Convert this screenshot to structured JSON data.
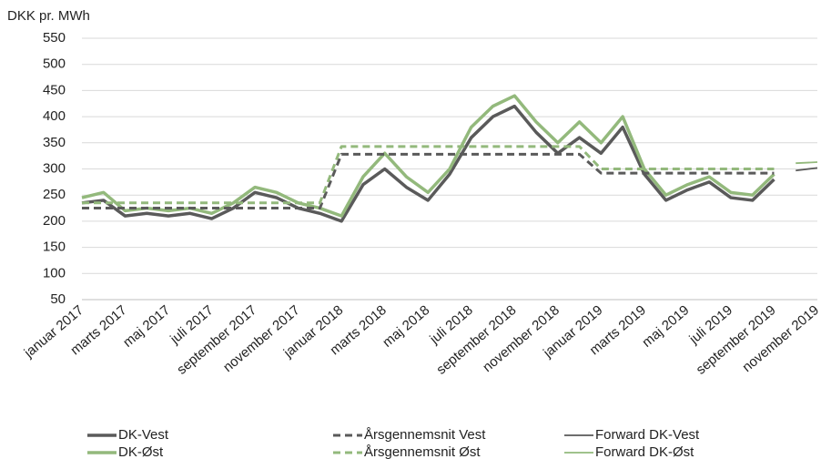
{
  "chart_data": {
    "type": "line",
    "y_label": "DKK pr. MWh",
    "categories": [
      "januar 2017",
      null,
      "marts 2017",
      null,
      "maj 2017",
      null,
      "juli 2017",
      null,
      "september 2017",
      null,
      "november 2017",
      null,
      "januar 2018",
      null,
      "marts 2018",
      null,
      "maj 2018",
      null,
      "juli 2018",
      null,
      "september 2018",
      null,
      "november 2018",
      null,
      "januar 2019",
      null,
      "marts 2019",
      null,
      "maj 2019",
      null,
      "juli 2019",
      null,
      "september 2019",
      null,
      "november 2019"
    ],
    "ylim": [
      50,
      550
    ],
    "yticks": [
      50,
      100,
      150,
      200,
      250,
      300,
      350,
      400,
      450,
      500,
      550
    ],
    "grid": true,
    "series": [
      {
        "name": "DK-Vest",
        "color": "#5a5a5a",
        "style": "solid",
        "width": 3.5,
        "values": [
          235,
          240,
          210,
          215,
          210,
          215,
          205,
          225,
          255,
          245,
          225,
          215,
          200,
          270,
          300,
          265,
          240,
          290,
          360,
          400,
          420,
          370,
          330,
          360,
          330,
          380,
          290,
          240,
          260,
          275,
          245,
          240,
          280,
          null,
          null
        ]
      },
      {
        "name": "DK-Øst",
        "color": "#93b97c",
        "style": "solid",
        "width": 3.5,
        "values": [
          245,
          255,
          220,
          225,
          220,
          225,
          215,
          235,
          265,
          255,
          235,
          225,
          210,
          285,
          330,
          285,
          255,
          300,
          380,
          420,
          440,
          390,
          350,
          390,
          350,
          400,
          300,
          250,
          270,
          285,
          255,
          250,
          290,
          null,
          null
        ]
      },
      {
        "name": "Årsgennemsnit Vest",
        "color": "#5a5a5a",
        "style": "dashed",
        "width": 3,
        "values": [
          225,
          225,
          225,
          225,
          225,
          225,
          225,
          225,
          225,
          225,
          225,
          225,
          328,
          328,
          328,
          328,
          328,
          328,
          328,
          328,
          328,
          328,
          328,
          328,
          292,
          292,
          292,
          292,
          292,
          292,
          292,
          292,
          292,
          null,
          null
        ]
      },
      {
        "name": "Årsgennemsnit Øst",
        "color": "#93b97c",
        "style": "dashed",
        "width": 3,
        "values": [
          235,
          235,
          235,
          235,
          235,
          235,
          235,
          235,
          235,
          235,
          235,
          235,
          343,
          343,
          343,
          343,
          343,
          343,
          343,
          343,
          343,
          343,
          343,
          343,
          300,
          300,
          300,
          300,
          300,
          300,
          300,
          300,
          300,
          null,
          null
        ]
      },
      {
        "name": "Forward DK-Vest",
        "color": "#5a5a5a",
        "style": "solid",
        "width": 1.8,
        "values": [
          null,
          null,
          null,
          null,
          null,
          null,
          null,
          null,
          null,
          null,
          null,
          null,
          null,
          null,
          null,
          null,
          null,
          null,
          null,
          null,
          null,
          null,
          null,
          null,
          null,
          null,
          null,
          null,
          null,
          null,
          null,
          null,
          null,
          297,
          302
        ]
      },
      {
        "name": "Forward DK-Øst",
        "color": "#93b97c",
        "style": "solid",
        "width": 1.8,
        "values": [
          null,
          null,
          null,
          null,
          null,
          null,
          null,
          null,
          null,
          null,
          null,
          null,
          null,
          null,
          null,
          null,
          null,
          null,
          null,
          null,
          null,
          null,
          null,
          null,
          null,
          null,
          null,
          null,
          null,
          null,
          null,
          null,
          null,
          311,
          313
        ]
      }
    ]
  }
}
